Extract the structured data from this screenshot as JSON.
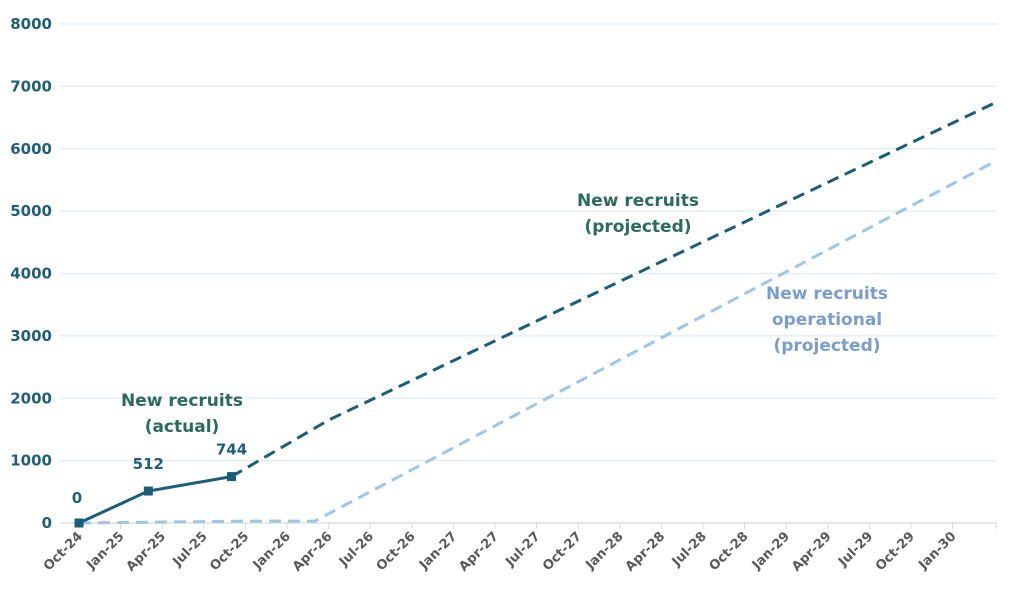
{
  "chart_data": {
    "type": "line",
    "title": "",
    "xlabel": "",
    "ylabel": "",
    "ylim": [
      0,
      8000
    ],
    "yticks": [
      0,
      1000,
      2000,
      3000,
      4000,
      5000,
      6000,
      7000,
      8000
    ],
    "xticks": [
      "Oct-24",
      "Jan-25",
      "Apr-25",
      "Jul-25",
      "Oct-25",
      "Jan-26",
      "Apr-26",
      "Jul-26",
      "Oct-26",
      "Jan-27",
      "Apr-27",
      "Jul-27",
      "Oct-27",
      "Jan-28",
      "Apr-28",
      "Jul-28",
      "Oct-28",
      "Jan-29",
      "Apr-29",
      "Jul-29",
      "Oct-29",
      "Jan-30"
    ],
    "xlim": [
      "Oct-24",
      "Apr-30"
    ],
    "grid": "horizontal",
    "series": [
      {
        "name": "New recruits (actual)",
        "label_lines": [
          "New recruits",
          "(actual)"
        ],
        "style": "solid",
        "markers": "square",
        "color": "#1a5e78",
        "label_color": "#2a6b5e",
        "points": [
          {
            "x": "Oct-24",
            "y": 0,
            "label": "0"
          },
          {
            "x": "Mar-25",
            "y": 512,
            "label": "512"
          },
          {
            "x": "Sep-25",
            "y": 744,
            "label": "744"
          }
        ]
      },
      {
        "name": "New recruits (projected)",
        "label_lines": [
          "New recruits",
          "(projected)"
        ],
        "style": "dashed",
        "color": "#1a5e78",
        "label_color": "#2a6b5e",
        "points": [
          {
            "x": "Sep-25",
            "y": 744
          },
          {
            "x": "Apr-26",
            "y": 1650
          },
          {
            "x": "Apr-30",
            "y": 6730
          }
        ]
      },
      {
        "name": "New recruits operational (projected)",
        "label_lines": [
          "New recruits",
          "operational",
          "(projected)"
        ],
        "style": "dashed",
        "color": "#9dc6e8",
        "label_color": "#7b9dcb",
        "points": [
          {
            "x": "Oct-24",
            "y": 0
          },
          {
            "x": "Oct-25",
            "y": 30
          },
          {
            "x": "Mar-26",
            "y": 30
          },
          {
            "x": "Apr-30",
            "y": 5790
          }
        ]
      }
    ]
  }
}
